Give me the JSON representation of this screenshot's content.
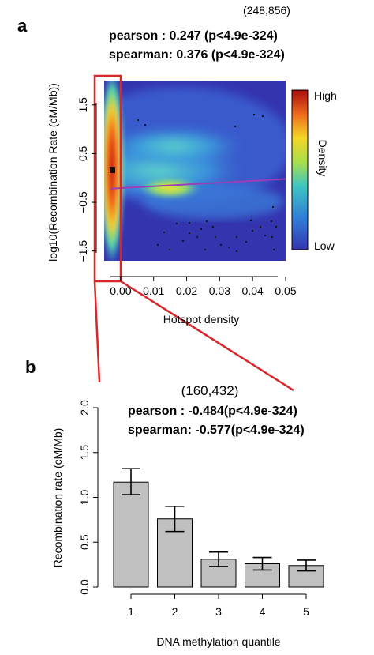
{
  "chart_data": [
    {
      "panel": "a",
      "type": "heatmap",
      "title": "",
      "count_label": "(248,856)",
      "stats": [
        "pearson : 0.247 (p<4.9e-324)",
        "spearman: 0.376 (p<4.9e-324)"
      ],
      "xlabel": "Hotspot density",
      "ylabel": "log10(Recombination Rate (cM/Mb))",
      "xlim": [
        -0.005,
        0.05
      ],
      "ylim": [
        -1.7,
        2.0
      ],
      "x_ticks": [
        "0.00",
        "0.01",
        "0.02",
        "0.03",
        "0.04",
        "0.05"
      ],
      "x_tick_values": [
        0.0,
        0.01,
        0.02,
        0.03,
        0.04,
        0.05
      ],
      "y_ticks": [
        "1.5",
        "0.5",
        "−0.5",
        "−1.5"
      ],
      "y_tick_values": [
        1.5,
        0.5,
        -0.5,
        -1.5
      ],
      "legend": {
        "title": "Density",
        "high": "High",
        "low": "Low"
      },
      "regression_line": {
        "x": [
          -0.003,
          0.05
        ],
        "y": [
          -0.22,
          -0.02
        ],
        "color": "#9a3fb8"
      },
      "colors": {
        "high": "#b0100d",
        "low": "#3939b8",
        "highlight": "#d8262a"
      }
    },
    {
      "panel": "b",
      "type": "bar",
      "title": "",
      "count_label": "(160,432)",
      "stats": [
        "pearson : -0.484(p<4.9e-324)",
        "spearman: -0.577(p<4.9e-324)"
      ],
      "xlabel": "DNA methylation quantile",
      "ylabel": "Recombination rate (cM/Mb)",
      "categories": [
        "1",
        "2",
        "3",
        "4",
        "5"
      ],
      "values": [
        1.17,
        0.76,
        0.31,
        0.26,
        0.24
      ],
      "error_low": [
        1.03,
        0.62,
        0.23,
        0.19,
        0.18
      ],
      "error_high": [
        1.32,
        0.9,
        0.39,
        0.33,
        0.3
      ],
      "ylim": [
        0,
        2.0
      ],
      "y_ticks": [
        "0.0",
        "0.5",
        "1.0",
        "1.5",
        "2.0"
      ],
      "y_tick_values": [
        0,
        0.5,
        1.0,
        1.5,
        2.0
      ],
      "colors": {
        "bar": "#c0c0c0"
      }
    }
  ]
}
